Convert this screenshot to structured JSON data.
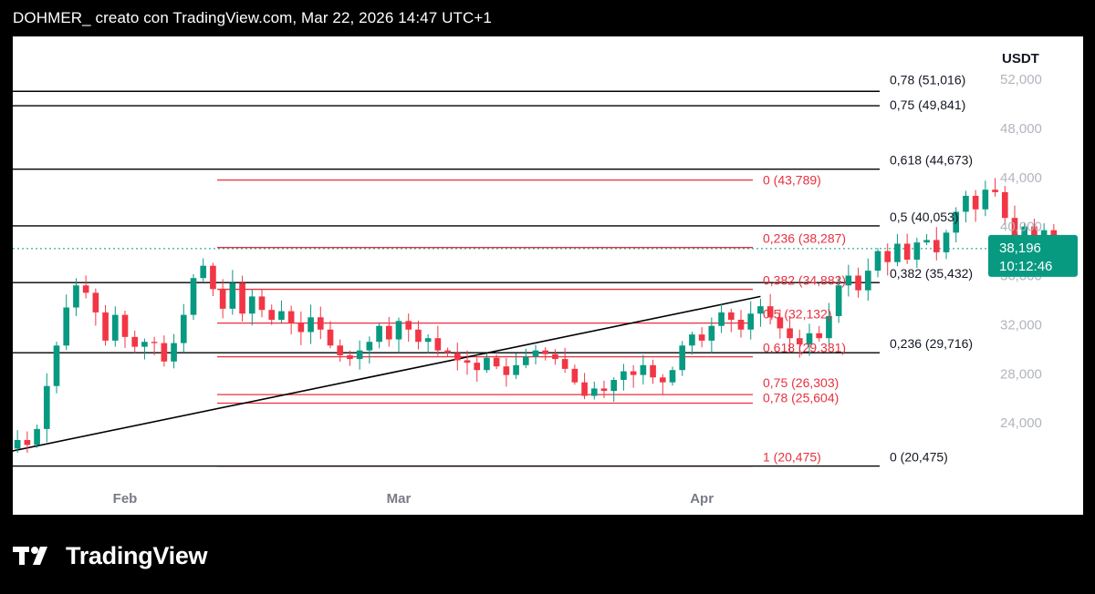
{
  "header": {
    "title": "DOHMER_ creato con TradingView.com, Mar 22, 2026 14:47 UTC+1"
  },
  "footer": {
    "brand": "TradingView"
  },
  "colors": {
    "up": "#089981",
    "down": "#f23645",
    "fib_red": "#e8303f",
    "fib_black": "#000000",
    "price_tag": "#089981"
  },
  "chart_data": {
    "type": "candlestick",
    "currency": "USDT",
    "x_ticks": [
      "Feb",
      "Mar",
      "Apr"
    ],
    "y_ticks": [
      24000,
      28000,
      32000,
      36000,
      40000,
      44000,
      48000,
      52000
    ],
    "y_range": [
      17500,
      52500
    ],
    "current_price": "38,196",
    "countdown": "10:12:46",
    "current_price_value": 38196,
    "fib_black": [
      {
        "label": "0,78 (51,016)",
        "value": 51016
      },
      {
        "label": "0,75 (49,841)",
        "value": 49841
      },
      {
        "label": "0,618 (44,673)",
        "value": 44673
      },
      {
        "label": "0,5 (40,053)",
        "value": 40053
      },
      {
        "label": "0,382 (35,432)",
        "value": 35432
      },
      {
        "label": "0,236 (29,716)",
        "value": 29716
      },
      {
        "label": "0 (20,475)",
        "value": 20475
      }
    ],
    "fib_red": [
      {
        "label": "0 (43,789)",
        "value": 43789
      },
      {
        "label": "0,236 (38,287)",
        "value": 38287
      },
      {
        "label": "0,382 (34,883)",
        "value": 34883
      },
      {
        "label": "0,5 (32,132)",
        "value": 32132
      },
      {
        "label": "0,618 (29,381)",
        "value": 29381
      },
      {
        "label": "0,75 (26,303)",
        "value": 26303
      },
      {
        "label": "0,78 (25,604)",
        "value": 25604
      },
      {
        "label": "1 (20,475)",
        "value": 20475
      }
    ],
    "trendline": {
      "start": {
        "date": "2026-01-13",
        "price": 20475
      },
      "end": {
        "date": "2026-04-07",
        "price": 34300
      }
    },
    "candles_start_date": "2026-01-13",
    "candles_close": [
      21000,
      20700,
      21200,
      21500,
      22100,
      21700,
      22300,
      21900,
      22600,
      22200,
      23500,
      27000,
      30300,
      33400,
      35200,
      34600,
      33000,
      30700,
      32800,
      31000,
      30200,
      30600,
      30500,
      29000,
      30500,
      32800,
      35800,
      36800,
      34900,
      33300,
      35400,
      32900,
      34300,
      33200,
      32400,
      33100,
      32100,
      31400,
      32600,
      31600,
      30300,
      29500,
      29200,
      29900,
      30600,
      31900,
      30800,
      32300,
      31600,
      30600,
      30900,
      29900,
      29700,
      29100,
      28900,
      28300,
      29300,
      28600,
      27900,
      28700,
      29400,
      29900,
      29600,
      29200,
      28400,
      27300,
      26200,
      26800,
      26600,
      27500,
      28200,
      27900,
      28700,
      27700,
      27300,
      28300,
      30300,
      31200,
      30700,
      31900,
      33000,
      32400,
      31600,
      32900,
      33500,
      32600,
      31700,
      30900,
      30400,
      31300,
      30900,
      32700,
      35200,
      36000,
      34800,
      36400,
      38000,
      37100,
      38600,
      37300,
      38700,
      38900,
      37900,
      39500,
      41200,
      42500,
      41400,
      43000,
      42800,
      40700,
      39100,
      40000,
      39000,
      39700,
      38200
    ]
  }
}
